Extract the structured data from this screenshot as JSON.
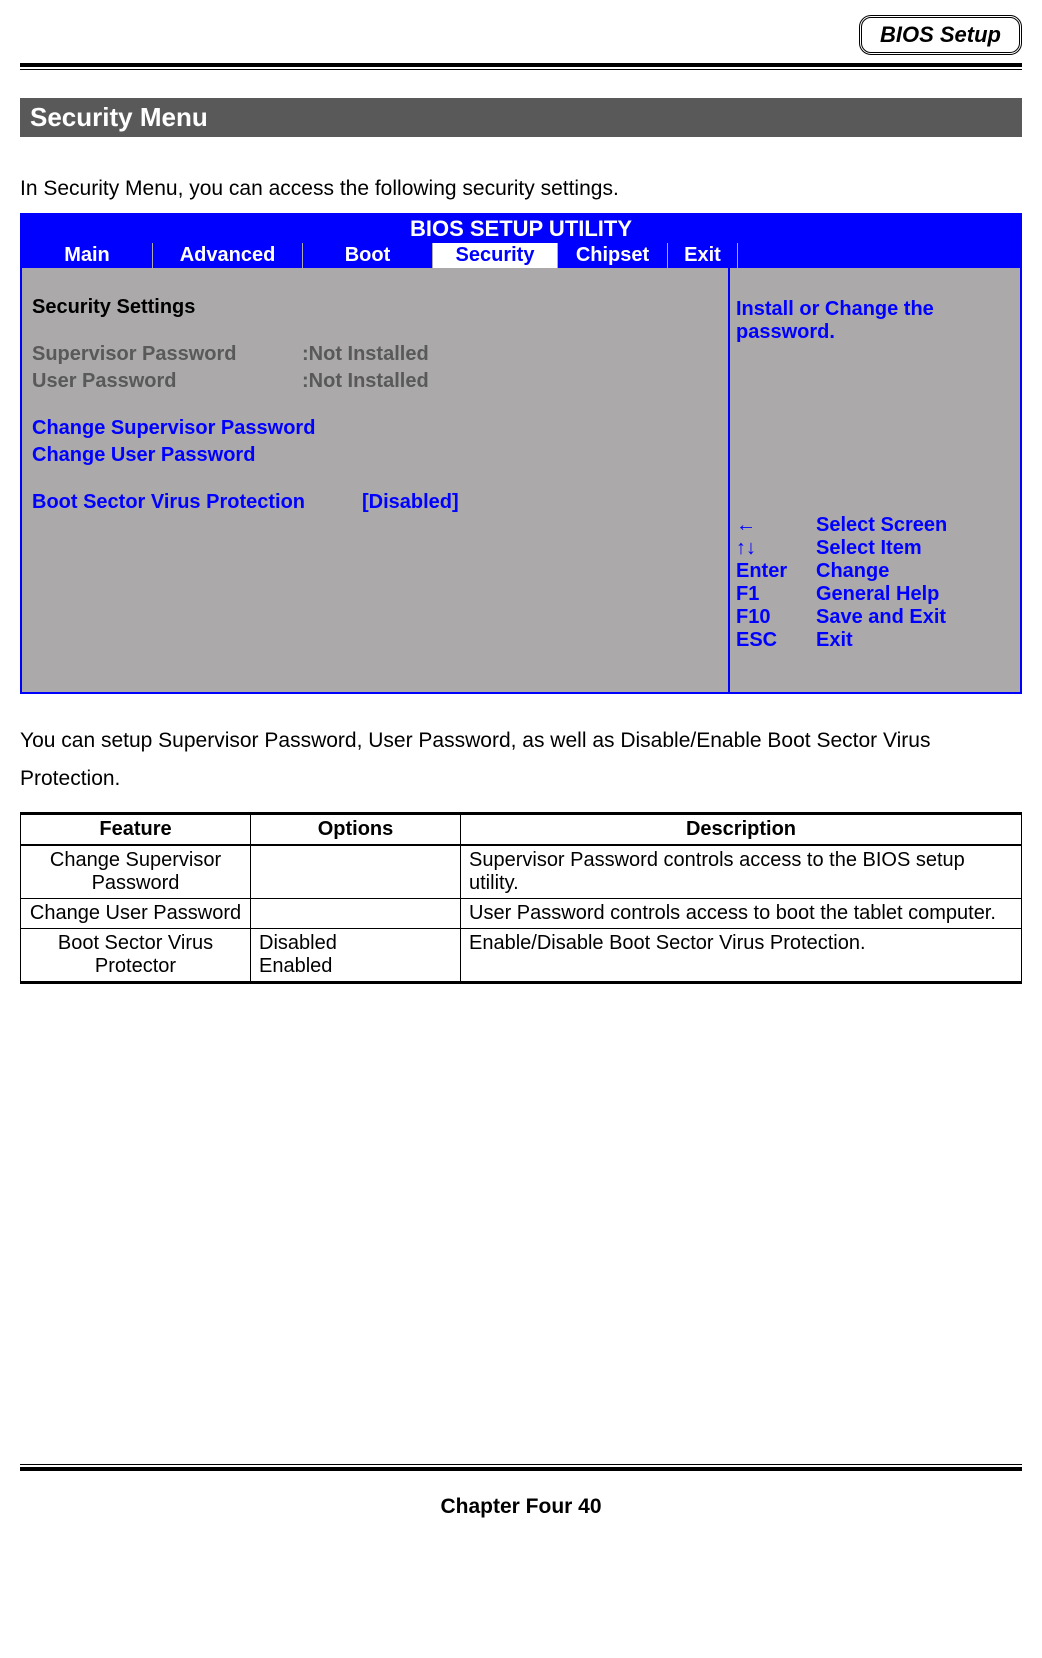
{
  "header": {
    "badge": "BIOS Setup"
  },
  "section_title": "Security Menu",
  "intro": "In Security Menu, you can access the following security settings.",
  "bios": {
    "title": "BIOS SETUP UTILITY",
    "tabs": [
      "Main",
      "Advanced",
      "Boot",
      "Security",
      "Chipset",
      "Exit"
    ],
    "tab_widths": [
      "130px",
      "150px",
      "130px",
      "125px",
      "110px",
      "70px",
      "1fr"
    ],
    "active_tab_index": 3,
    "left": {
      "heading": "Security Settings",
      "supervisor_label": "Supervisor Password",
      "supervisor_value": ":Not Installed",
      "user_label": "User Password",
      "user_value": ":Not Installed",
      "change_supervisor": "Change Supervisor Password",
      "change_user": "Change User Password",
      "boot_protect_label": "Boot Sector Virus Protection",
      "boot_protect_value": "[Disabled]"
    },
    "right": {
      "help": "Install or Change the password.",
      "keys": [
        {
          "k": "←",
          "v": "Select Screen"
        },
        {
          "k": "↑↓",
          "v": "Select Item"
        },
        {
          "k": "Enter",
          "v": "Change"
        },
        {
          "k": "F1",
          "v": "General Help"
        },
        {
          "k": "F10",
          "v": "Save and Exit"
        },
        {
          "k": "ESC",
          "v": "Exit"
        }
      ]
    }
  },
  "after": "You can setup Supervisor Password, User Password, as well as Disable/Enable Boot Sector Virus Protection.",
  "table": {
    "col_widths": [
      "230px",
      "210px",
      "auto"
    ],
    "headers": [
      "Feature",
      "Options",
      "Description"
    ],
    "rows": [
      {
        "feature": "Change Supervisor Password",
        "options": "",
        "description": "Supervisor Password controls access to the BIOS setup utility."
      },
      {
        "feature": "Change User Password",
        "options": "",
        "description": "User Password controls access to boot the tablet computer."
      },
      {
        "feature": "Boot Sector Virus Protector",
        "options": "Disabled\nEnabled",
        "description": "Enable/Disable Boot Sector Virus Protection."
      }
    ]
  },
  "footer": "Chapter Four 40"
}
